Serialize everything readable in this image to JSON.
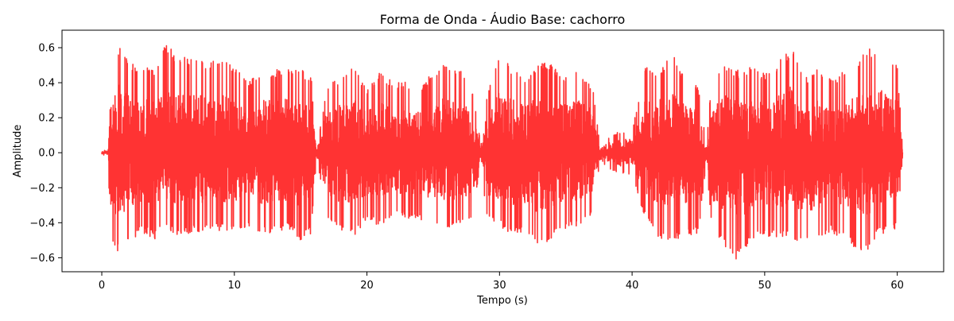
{
  "chart_data": {
    "type": "line",
    "title": "Forma de Onda - Áudio Base: cachorro",
    "xlabel": "Tempo (s)",
    "ylabel": "Amplitude",
    "xlim": [
      -3.0,
      63.5
    ],
    "ylim": [
      -0.68,
      0.7
    ],
    "x_ticks": [
      0,
      10,
      20,
      30,
      40,
      50,
      60
    ],
    "x_tick_labels": [
      "0",
      "10",
      "20",
      "30",
      "40",
      "50",
      "60"
    ],
    "y_ticks": [
      -0.6,
      -0.4,
      -0.2,
      0.0,
      0.2,
      0.4,
      0.6
    ],
    "y_tick_labels": [
      "−0.6",
      "−0.4",
      "−0.2",
      "0.0",
      "0.2",
      "0.4",
      "0.6"
    ],
    "grid": false,
    "line_color": "#ff3333",
    "series": [
      {
        "duration_s": 60.4,
        "envelope": {
          "t": [
            0.0,
            0.5,
            0.6,
            1.0,
            1.3,
            2.0,
            3.0,
            4.0,
            4.7,
            5.5,
            6.0,
            7.0,
            8.0,
            9.0,
            10.0,
            11.0,
            12.0,
            13.0,
            14.0,
            15.0,
            15.8,
            16.2,
            17.0,
            18.0,
            19.0,
            20.0,
            21.0,
            22.0,
            23.0,
            24.0,
            25.0,
            26.0,
            27.0,
            28.0,
            28.6,
            29.0,
            30.0,
            31.0,
            32.0,
            33.0,
            34.0,
            35.0,
            36.0,
            37.0,
            37.6,
            38.0,
            39.0,
            40.0,
            41.0,
            42.0,
            43.0,
            44.0,
            45.0,
            45.6,
            46.0,
            47.0,
            48.0,
            49.0,
            50.0,
            51.0,
            52.0,
            53.0,
            54.0,
            55.0,
            56.0,
            57.0,
            57.8,
            58.5,
            59.0,
            60.0,
            60.4
          ],
          "pos": [
            0.01,
            0.02,
            0.47,
            0.61,
            0.62,
            0.53,
            0.49,
            0.48,
            0.64,
            0.57,
            0.55,
            0.54,
            0.52,
            0.55,
            0.49,
            0.41,
            0.48,
            0.47,
            0.5,
            0.48,
            0.43,
            0.03,
            0.38,
            0.44,
            0.49,
            0.37,
            0.47,
            0.4,
            0.41,
            0.36,
            0.47,
            0.51,
            0.48,
            0.35,
            0.04,
            0.32,
            0.58,
            0.48,
            0.44,
            0.52,
            0.5,
            0.45,
            0.48,
            0.39,
            0.03,
            0.08,
            0.12,
            0.13,
            0.5,
            0.47,
            0.57,
            0.43,
            0.38,
            0.05,
            0.42,
            0.52,
            0.47,
            0.5,
            0.45,
            0.52,
            0.61,
            0.43,
            0.48,
            0.42,
            0.47,
            0.52,
            0.62,
            0.58,
            0.56,
            0.53,
            0.02
          ],
          "neg": [
            -0.01,
            -0.02,
            -0.44,
            -0.57,
            -0.56,
            -0.52,
            -0.45,
            -0.5,
            -0.43,
            -0.47,
            -0.48,
            -0.46,
            -0.45,
            -0.45,
            -0.44,
            -0.43,
            -0.46,
            -0.46,
            -0.43,
            -0.5,
            -0.47,
            -0.03,
            -0.39,
            -0.45,
            -0.48,
            -0.38,
            -0.42,
            -0.36,
            -0.38,
            -0.39,
            -0.43,
            -0.44,
            -0.42,
            -0.36,
            -0.04,
            -0.38,
            -0.42,
            -0.48,
            -0.45,
            -0.56,
            -0.49,
            -0.44,
            -0.43,
            -0.37,
            -0.03,
            -0.08,
            -0.12,
            -0.13,
            -0.38,
            -0.49,
            -0.52,
            -0.47,
            -0.47,
            -0.05,
            -0.42,
            -0.54,
            -0.62,
            -0.5,
            -0.48,
            -0.48,
            -0.5,
            -0.54,
            -0.52,
            -0.46,
            -0.5,
            -0.56,
            -0.57,
            -0.47,
            -0.47,
            -0.43,
            -0.02
          ]
        }
      }
    ]
  }
}
